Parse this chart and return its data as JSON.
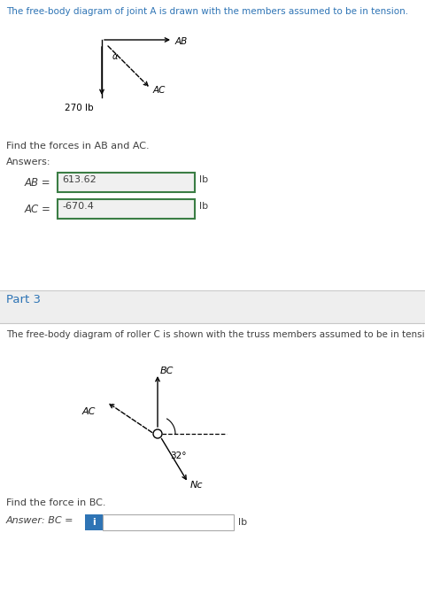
{
  "bg_color": "#ffffff",
  "part1_header": "The free-body diagram of joint A is drawn with the members assumed to be in tension.",
  "header_color": "#2e74b5",
  "part1_find": "Find the forces in AB and AC.",
  "part1_answers": "Answers:",
  "ab_label": "AB =",
  "ab_value": "613.62",
  "ac_label": "AC =",
  "ac_value": "-670.4",
  "lb_text": "lb",
  "separator_color": "#c8c8c8",
  "part3_bg": "#eeeeee",
  "part3_label": "Part 3",
  "part3_label_color": "#2e74b5",
  "part2_header": "The free-body diagram of roller C is shown with the truss members assumed to be in tension.",
  "part2_header_color": "#404040",
  "part2_find": "Find the force in BC.",
  "part2_answer_label": "Answer: BC =",
  "input_box_color": "#2e74b5",
  "input_i_label": "i",
  "weight_label": "270 lb",
  "alpha_label": "α",
  "ab_arrow_label": "AB",
  "ac_arrow_label": "AC",
  "bc_label": "BC",
  "ac2_label": "AC",
  "nc_label": "Nc",
  "angle_label": "32°",
  "text_color": "#404040",
  "box_border_color": "#3a7d44",
  "box_fill_color": "#f0f0f0",
  "box_answer_fill": "#f0f0f0"
}
